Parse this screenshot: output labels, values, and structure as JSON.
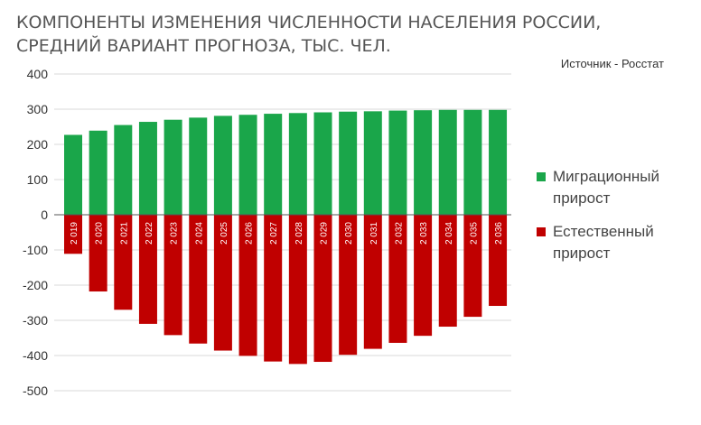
{
  "title": {
    "line1": "КОМПОНЕНТЫ ИЗМЕНЕНИЯ ЧИСЛЕННОСТИ НАСЕЛЕНИЯ РОССИИ,",
    "line2": "СРЕДНИЙ ВАРИАНТ ПРОГНОЗА, ТЫС. ЧЕЛ."
  },
  "source": "Источник - Росстат",
  "colors": {
    "migration": "#1aa64a",
    "natural": "#c00000",
    "grid": "#d9d9d9",
    "axis": "#555555"
  },
  "chart_data": {
    "type": "bar",
    "stacked": true,
    "title": "КОМПОНЕНТЫ ИЗМЕНЕНИЯ ЧИСЛЕННОСТИ НАСЕЛЕНИЯ РОССИИ, СРЕДНИЙ ВАРИАНТ ПРОГНОЗА, ТЫС. ЧЕЛ.",
    "categories": [
      "2 019",
      "2 020",
      "2 021",
      "2 022",
      "2 023",
      "2 024",
      "2 025",
      "2 026",
      "2 027",
      "2 028",
      "2 029",
      "2 030",
      "2 031",
      "2 032",
      "2 033",
      "2 034",
      "2 035",
      "2 036"
    ],
    "series": [
      {
        "name": "Миграционный прирост",
        "values": [
          227,
          239,
          255,
          264,
          270,
          276,
          281,
          284,
          287,
          289,
          291,
          293,
          294,
          296,
          297,
          298,
          298,
          298
        ]
      },
      {
        "name": "Естественный прирост",
        "values": [
          -111,
          -218,
          -270,
          -310,
          -342,
          -366,
          -386,
          -401,
          -417,
          -424,
          -418,
          -398,
          -381,
          -364,
          -344,
          -318,
          -290,
          -259
        ]
      }
    ],
    "yticks": [
      400,
      300,
      200,
      100,
      0,
      -100,
      -200,
      -300,
      -400,
      -500
    ],
    "ylim": [
      -500,
      400
    ],
    "grid": true,
    "legend": "right"
  }
}
